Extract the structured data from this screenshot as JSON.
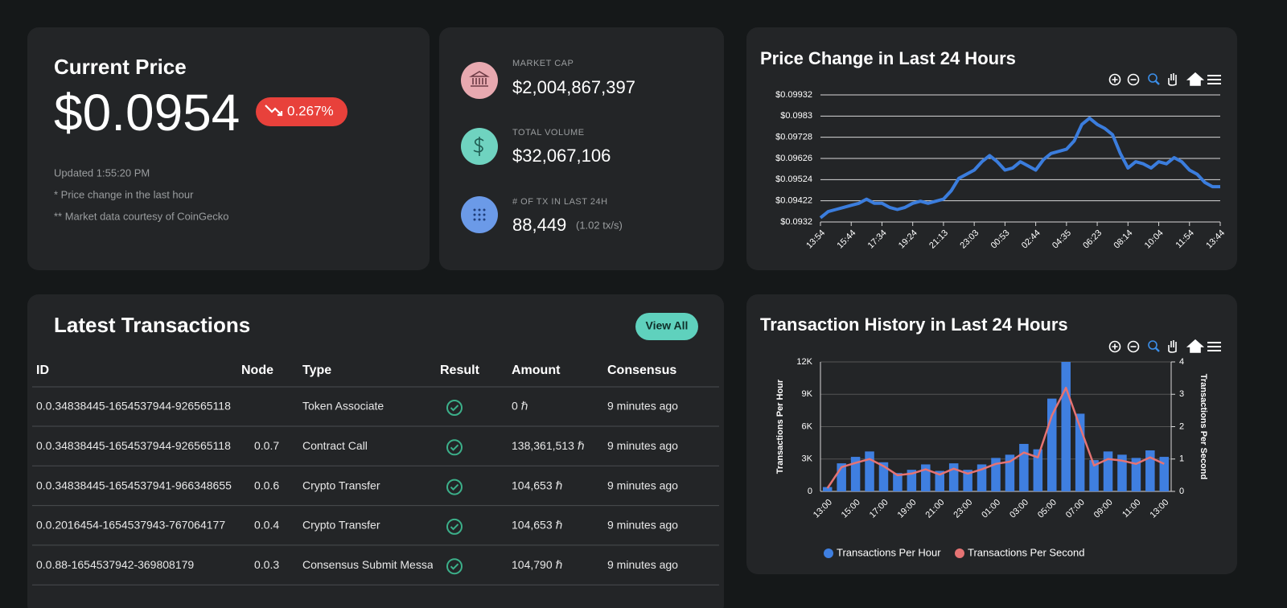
{
  "price_card": {
    "title": "Current Price",
    "price": "$0.0954",
    "change": "0.267%",
    "updated": "Updated 1:55:20 PM",
    "notes": [
      "* Price change in the last hour",
      "** Market data courtesy of CoinGecko"
    ]
  },
  "market_card": {
    "items": [
      {
        "label": "MARKET CAP",
        "value": "$2,004,867,397"
      },
      {
        "label": "TOTAL VOLUME",
        "value": "$32,067,106"
      },
      {
        "label": "# OF TX IN LAST 24H",
        "value": "88,449",
        "extra": "(1.02 tx/s)"
      }
    ]
  },
  "price_chart": {
    "type": "line",
    "title": "Price Change in Last 24 Hours",
    "color": "#3b7ddd",
    "categories": [
      "13:54",
      null,
      null,
      null,
      "15:44",
      null,
      null,
      null,
      "17:34",
      null,
      null,
      null,
      "19:24",
      null,
      null,
      null,
      "21:13",
      null,
      null,
      null,
      "23:03",
      null,
      null,
      null,
      "00:53",
      null,
      null,
      null,
      "02:44",
      null,
      null,
      null,
      "04:35",
      null,
      null,
      null,
      "06:23",
      null,
      null,
      null,
      "08:14",
      null,
      null,
      null,
      "10:04",
      null,
      null,
      null,
      "11:54",
      null,
      null,
      null,
      "13:44"
    ],
    "values": [
      0.0934,
      0.0937,
      0.0938,
      0.0939,
      0.094,
      0.0941,
      0.0943,
      0.0941,
      0.0941,
      0.0939,
      0.0938,
      0.0939,
      0.0941,
      0.0942,
      0.0941,
      0.0942,
      0.0943,
      0.0947,
      0.0953,
      0.0955,
      0.0957,
      0.0961,
      0.0964,
      0.0961,
      0.0957,
      0.0958,
      0.0961,
      0.0959,
      0.0957,
      0.0962,
      0.0965,
      0.0966,
      0.0967,
      0.0971,
      0.0979,
      0.0982,
      0.0979,
      0.0977,
      0.0974,
      0.0965,
      0.0958,
      0.0961,
      0.096,
      0.0958,
      0.0961,
      0.096,
      0.0963,
      0.0961,
      0.0957,
      0.0955,
      0.0951,
      0.0949,
      0.0949
    ],
    "ylim": [
      0.0932,
      0.09932
    ],
    "yticks": [
      {
        "value": 0.0932,
        "label": "$0.0932"
      },
      {
        "value": 0.09422,
        "label": "$0.09422"
      },
      {
        "value": 0.09524,
        "label": "$0.09524"
      },
      {
        "value": 0.09626,
        "label": "$0.09626"
      },
      {
        "value": 0.09728,
        "label": "$0.09728"
      },
      {
        "value": 0.0983,
        "label": "$0.0983"
      },
      {
        "value": 0.09932,
        "label": "$0.09932"
      }
    ],
    "grid": true
  },
  "transactions": {
    "title": "Latest Transactions",
    "button": "View All",
    "columns": [
      "ID",
      "Node",
      "Type",
      "Result",
      "Amount",
      "Consensus"
    ],
    "rows": [
      {
        "id": "0.0.34838445-1654537944-926565118",
        "type": "Token Associate",
        "amount": "0 ℏ",
        "consensus": "9 minutes ago"
      },
      {
        "id": "0.0.34838445-1654537944-926565118",
        "node": "0.0.7",
        "type": "Contract Call",
        "amount": "138,361,513 ℏ",
        "consensus": "9 minutes ago"
      },
      {
        "id": "0.0.34838445-1654537941-966348655",
        "node": "0.0.6",
        "type": "Crypto Transfer",
        "amount": "104,653 ℏ",
        "consensus": "9 minutes ago"
      },
      {
        "id": "0.0.2016454-1654537943-767064177",
        "node": "0.0.4",
        "type": "Crypto Transfer",
        "amount": "104,653 ℏ",
        "consensus": "9 minutes ago"
      },
      {
        "id": "0.0.88-1654537942-369808179",
        "node": "0.0.3",
        "type": "Consensus Submit Message",
        "amount": "104,790 ℏ",
        "consensus": "9 minutes ago"
      }
    ]
  },
  "tx_chart": {
    "type": "bar",
    "title": "Transaction History in Last 24 Hours",
    "ylabel": "Transactions Per Hour",
    "y2label": "Transactions Per Second",
    "categories": [
      "13:00",
      null,
      "15:00",
      null,
      "17:00",
      null,
      "19:00",
      null,
      "21:00",
      null,
      "23:00",
      null,
      "01:00",
      null,
      "03:00",
      null,
      "05:00",
      null,
      "07:00",
      null,
      "09:00",
      null,
      "11:00",
      null,
      "13:00"
    ],
    "series": [
      {
        "name": "Transactions Per Hour",
        "color": "#3f7fe0",
        "type": "bar",
        "values": [
          400,
          2600,
          3200,
          3700,
          2700,
          1700,
          2000,
          2500,
          1900,
          2600,
          2000,
          2500,
          3100,
          3400,
          4400,
          3900,
          8600,
          12000,
          7200,
          2900,
          3700,
          3400,
          3100,
          3800,
          3200
        ]
      },
      {
        "name": "Transactions Per Second",
        "color": "#e57373",
        "type": "line",
        "axis": "y2",
        "values": [
          0.1,
          0.75,
          0.88,
          1.0,
          0.78,
          0.5,
          0.55,
          0.68,
          0.52,
          0.7,
          0.55,
          0.68,
          0.85,
          0.92,
          1.2,
          1.05,
          2.35,
          3.2,
          2.0,
          0.8,
          1.0,
          0.95,
          0.85,
          1.05,
          0.85
        ]
      }
    ],
    "ylim": [
      0,
      12000
    ],
    "yticks": [
      0,
      {
        "value": 3000,
        "label": "3K"
      },
      {
        "value": 6000,
        "label": "6K"
      },
      {
        "value": 9000,
        "label": "9K"
      },
      {
        "value": 12000,
        "label": "12K"
      }
    ],
    "y2lim": [
      0,
      4
    ],
    "y2ticks": [
      0,
      1,
      2,
      3,
      4
    ],
    "grid": true
  }
}
